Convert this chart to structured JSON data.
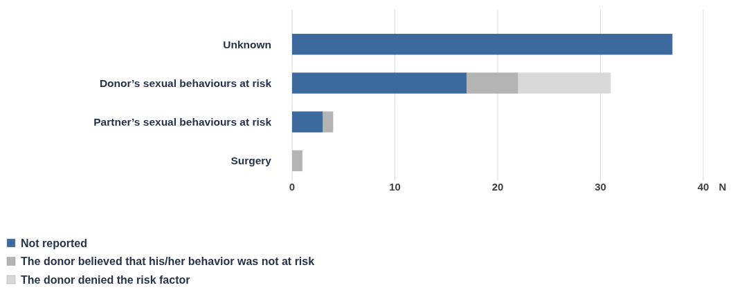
{
  "chart_data": {
    "type": "bar",
    "orientation": "horizontal",
    "stacked": true,
    "categories": [
      "Unknown",
      "Donor’s sexual behaviours at risk",
      "Partner’s sexual behaviours at risk",
      "Surgery"
    ],
    "series": [
      {
        "name": "Not reported",
        "color": "#3d6a9e",
        "values": [
          37,
          17,
          3,
          0
        ]
      },
      {
        "name": "The donor believed that his/her behavior was not at risk",
        "color": "#b4b4b4",
        "values": [
          0,
          5,
          1,
          1
        ]
      },
      {
        "name": "The donor denied the risk factor",
        "color": "#d9d9d9",
        "values": [
          0,
          9,
          0,
          0
        ]
      }
    ],
    "xlim": [
      0,
      40
    ],
    "xticks": [
      0,
      10,
      20,
      30,
      40
    ],
    "xlabel": "N",
    "grid": "x",
    "legend": "bottom"
  }
}
